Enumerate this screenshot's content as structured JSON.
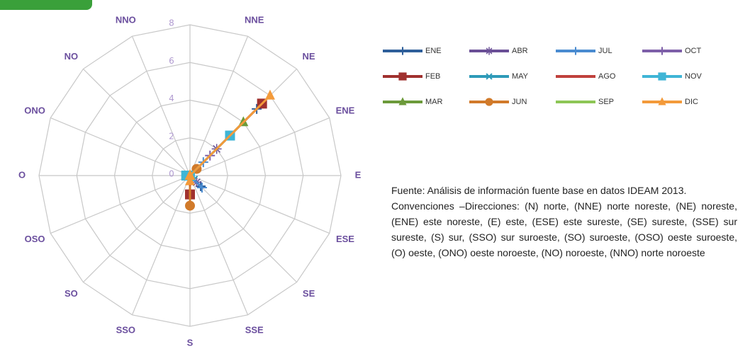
{
  "chart_data": {
    "type": "radar",
    "categories": [
      null,
      "NNE",
      "NE",
      "ENE",
      "E",
      "ESE",
      "SE",
      "SSE",
      "S",
      "SSO",
      "SO",
      "OSO",
      "O",
      "ONO",
      "NO",
      "NNO"
    ],
    "ylim": [
      0,
      8
    ],
    "yticks": [
      0,
      2,
      4,
      6,
      8
    ],
    "grid": true,
    "series": [
      {
        "name": "ENE",
        "color": "#2e5f9a",
        "marker": "plus",
        "values": [
          0,
          0,
          5,
          0,
          0,
          0,
          0.8,
          0,
          0,
          0,
          0,
          0,
          0,
          0,
          0,
          0
        ]
      },
      {
        "name": "FEB",
        "color": "#a0312f",
        "marker": "square",
        "values": [
          0,
          0,
          5.4,
          0,
          0,
          0,
          0,
          0,
          1,
          0,
          0,
          0,
          0,
          0,
          0,
          0
        ]
      },
      {
        "name": "MAR",
        "color": "#6c9a3a",
        "marker": "triangle",
        "values": [
          0,
          0,
          4,
          0,
          0,
          0,
          0,
          0,
          0,
          0,
          0,
          0,
          0,
          0,
          0,
          0
        ]
      },
      {
        "name": "ABR",
        "color": "#6a4f96",
        "marker": "star",
        "values": [
          0,
          0,
          2,
          0,
          0,
          0,
          0.5,
          0,
          0,
          0,
          0,
          0,
          0,
          0,
          0,
          0
        ]
      },
      {
        "name": "MAY",
        "color": "#2e9ab8",
        "marker": "x",
        "values": [
          0,
          0,
          0.5,
          0,
          0,
          0,
          0.3,
          0,
          0,
          0,
          0,
          0,
          0,
          0,
          0,
          0
        ]
      },
      {
        "name": "JUN",
        "color": "#d17a2a",
        "marker": "circle",
        "values": [
          0,
          0,
          0.5,
          0,
          0,
          0,
          0,
          0,
          1.6,
          0,
          0,
          0,
          0,
          0,
          0,
          0
        ]
      },
      {
        "name": "JUL",
        "color": "#4a8bd0",
        "marker": "plus",
        "values": [
          0,
          0,
          1,
          0,
          0,
          0,
          0.9,
          0,
          0,
          0,
          0,
          0,
          0,
          0,
          0,
          0
        ]
      },
      {
        "name": "AGO",
        "color": "#c0413c",
        "marker": "none",
        "values": [
          0,
          0,
          1,
          0,
          0,
          0,
          0,
          0,
          0.5,
          0,
          0,
          0,
          0,
          0,
          0,
          0
        ]
      },
      {
        "name": "SEP",
        "color": "#8dc656",
        "marker": "none",
        "values": [
          0,
          0,
          2,
          0,
          0,
          0,
          0,
          0,
          0,
          0,
          0,
          0,
          0,
          0,
          0,
          0
        ]
      },
      {
        "name": "OCT",
        "color": "#7d5fa8",
        "marker": "plus",
        "values": [
          0,
          0,
          1.5,
          0,
          0,
          0,
          0,
          0,
          0,
          0,
          0,
          0,
          0,
          0,
          0,
          0
        ]
      },
      {
        "name": "NOV",
        "color": "#3fb5d6",
        "marker": "square",
        "values": [
          0,
          0,
          3,
          0,
          0,
          0,
          0,
          0,
          0,
          0,
          0,
          0,
          0.2,
          0,
          0,
          0
        ]
      },
      {
        "name": "DIC",
        "color": "#f39a3a",
        "marker": "triangle",
        "values": [
          0,
          0,
          6,
          0,
          0,
          0,
          0,
          0,
          0.3,
          0,
          0,
          0,
          0,
          0,
          0,
          0
        ]
      }
    ],
    "notes": [
      "Fuente: Análisis de información fuente base en datos IDEAM 2013.",
      "Convenciones –Direcciones: (N) norte, (NNE) norte noreste, (NE) noreste, (ENE) este noreste, (E) este, (ESE) este sureste, (SE) sureste, (SSE) sur sureste, (S) sur, (SSO) sur suroeste, (SO) suroeste, (OSO) oeste suroeste, (O) oeste, (ONO) oeste noroeste, (NO) noroeste, (NNO) norte noroeste"
    ]
  }
}
